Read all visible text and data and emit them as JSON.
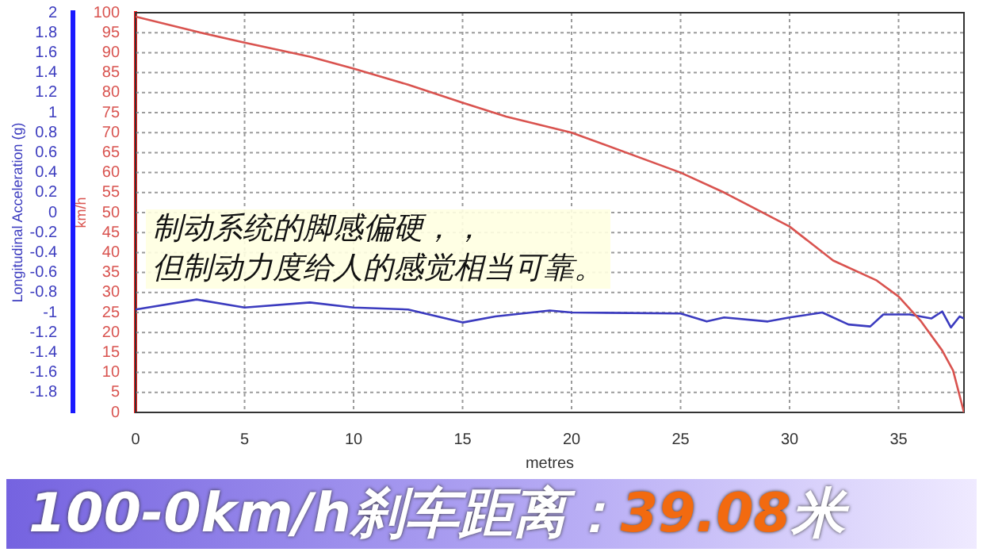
{
  "chart_data": {
    "type": "line",
    "title": "100-0km/h刹车距离：39.08米",
    "xlabel": "metres",
    "ylabel": "km/h",
    "y2label": "Longitudinal Acceleration (g)",
    "annotations": [
      "制动系统的脚感偏硬，，",
      "但制动力度给人的感觉相当可靠。"
    ],
    "series": [
      {
        "color": "#d9534f",
        "x": [
          0,
          3,
          5,
          8,
          10,
          12.5,
          15,
          17,
          20,
          25,
          27,
          30,
          32,
          34,
          35,
          36,
          37,
          37.5,
          38
        ],
        "values": [
          99,
          95,
          92.5,
          89,
          86,
          82,
          77.5,
          74,
          70,
          60,
          55,
          46.5,
          38,
          33,
          29,
          23,
          15.5,
          10.5,
          0
        ]
      },
      {
        "color": "#3b3bbf",
        "axis": "y2",
        "x": [
          0,
          2.8,
          5,
          8,
          10,
          12.5,
          15,
          16.5,
          19,
          20,
          25,
          26.2,
          27,
          29,
          30,
          31.5,
          32.7,
          33.7,
          34.3,
          35.5,
          36.5,
          37,
          37.4,
          37.8,
          38
        ],
        "values": [
          -0.97,
          -0.87,
          -0.95,
          -0.9,
          -0.95,
          -0.97,
          -1.1,
          -1.04,
          -0.98,
          -1.0,
          -1.01,
          -1.09,
          -1.05,
          -1.09,
          -1.05,
          -1.0,
          -1.12,
          -1.14,
          -1.02,
          -1.02,
          -1.06,
          -0.99,
          -1.15,
          -1.04,
          -1.06
        ]
      }
    ],
    "xlim": [
      0,
      38
    ],
    "xticks": [
      0,
      5,
      10,
      15,
      20,
      25,
      30,
      35
    ],
    "ylim": [
      0,
      100
    ],
    "yticks": [
      0,
      5,
      10,
      15,
      20,
      25,
      30,
      35,
      40,
      45,
      50,
      55,
      60,
      65,
      70,
      75,
      80,
      85,
      90,
      95,
      100
    ],
    "y2lim": [
      -2,
      2
    ],
    "y2ticks": [
      -1.8,
      -1.6,
      -1.4,
      -1.2,
      -1,
      -0.8,
      -0.6,
      -0.4,
      -0.2,
      0,
      0.2,
      0.4,
      0.6,
      0.8,
      1,
      1.2,
      1.4,
      1.6,
      1.8,
      2
    ],
    "grid": true,
    "legend": false,
    "marker": "none",
    "line_style": "solid"
  }
}
